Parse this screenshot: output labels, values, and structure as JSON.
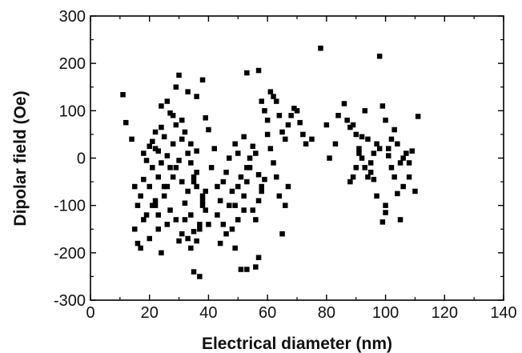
{
  "chart_data": {
    "type": "scatter",
    "title": "",
    "xlabel": "Electrical diameter (nm)",
    "ylabel": "Dipolar field (Oe)",
    "xlim": [
      0,
      140
    ],
    "ylim": [
      -300,
      300
    ],
    "x_ticks": [
      "0",
      "20",
      "40",
      "60",
      "80",
      "100",
      "120",
      "140"
    ],
    "y_ticks": [
      "300",
      "200",
      "100",
      "0",
      "-100",
      "-200",
      "-300"
    ],
    "grid": false,
    "legend": "none",
    "marker": "filled-square",
    "color": "#000000",
    "series": [
      {
        "points": [
          [
            11,
            134
          ],
          [
            12,
            75
          ],
          [
            14,
            40
          ],
          [
            15,
            -60
          ],
          [
            16,
            -100
          ],
          [
            17,
            -190
          ],
          [
            16,
            -180
          ],
          [
            18,
            -130
          ],
          [
            19,
            -120
          ],
          [
            15,
            -150
          ],
          [
            17,
            -80
          ],
          [
            18,
            -45
          ],
          [
            20,
            -60
          ],
          [
            20,
            -170
          ],
          [
            21,
            -100
          ],
          [
            22,
            -90
          ],
          [
            21,
            -20
          ],
          [
            22,
            20
          ],
          [
            23,
            -40
          ],
          [
            24,
            -10
          ],
          [
            25,
            -60
          ],
          [
            26,
            5
          ],
          [
            27,
            -20
          ],
          [
            28,
            30
          ],
          [
            23,
            -150
          ],
          [
            24,
            -200
          ],
          [
            26,
            -140
          ],
          [
            27,
            -110
          ],
          [
            29,
            -130
          ],
          [
            30,
            -175
          ],
          [
            31,
            -160
          ],
          [
            32,
            -95
          ],
          [
            33,
            -70
          ],
          [
            34,
            -120
          ],
          [
            35,
            -50
          ],
          [
            36,
            -30
          ],
          [
            37,
            -150
          ],
          [
            38,
            -100
          ],
          [
            30,
            175
          ],
          [
            33,
            140
          ],
          [
            36,
            130
          ],
          [
            38,
            165
          ],
          [
            39,
            85
          ],
          [
            40,
            60
          ],
          [
            28,
            90
          ],
          [
            29,
            70
          ],
          [
            31,
            40
          ],
          [
            33,
            10
          ],
          [
            34,
            -10
          ],
          [
            35,
            -40
          ],
          [
            36,
            -60
          ],
          [
            38,
            -80
          ],
          [
            39,
            -110
          ],
          [
            40,
            -140
          ],
          [
            41,
            -20
          ],
          [
            42,
            20
          ],
          [
            43,
            -60
          ],
          [
            44,
            -90
          ],
          [
            45,
            -50
          ],
          [
            46,
            -30
          ],
          [
            47,
            0
          ],
          [
            48,
            -70
          ],
          [
            49,
            -100
          ],
          [
            50,
            -60
          ],
          [
            51,
            -40
          ],
          [
            52,
            -80
          ],
          [
            53,
            -20
          ],
          [
            54,
            0
          ],
          [
            55,
            -110
          ],
          [
            56,
            -130
          ],
          [
            57,
            -90
          ],
          [
            58,
            -60
          ],
          [
            35,
            -240
          ],
          [
            37,
            -250
          ],
          [
            51,
            -235
          ],
          [
            53,
            -235
          ],
          [
            56,
            -230
          ],
          [
            57,
            -210
          ],
          [
            49,
            30
          ],
          [
            50,
            10
          ],
          [
            52,
            45
          ],
          [
            53,
            180
          ],
          [
            57,
            185
          ],
          [
            58,
            120
          ],
          [
            59,
            100
          ],
          [
            60,
            80
          ],
          [
            61,
            140
          ],
          [
            62,
            130
          ],
          [
            63,
            120
          ],
          [
            64,
            90
          ],
          [
            65,
            55
          ],
          [
            66,
            40
          ],
          [
            67,
            70
          ],
          [
            68,
            90
          ],
          [
            69,
            105
          ],
          [
            70,
            100
          ],
          [
            71,
            75
          ],
          [
            72,
            50
          ],
          [
            73,
            30
          ],
          [
            60,
            50
          ],
          [
            61,
            20
          ],
          [
            62,
            -10
          ],
          [
            63,
            -40
          ],
          [
            64,
            -80
          ],
          [
            65,
            -160
          ],
          [
            66,
            -100
          ],
          [
            67,
            -60
          ],
          [
            75,
            40
          ],
          [
            78,
            232
          ],
          [
            80,
            70
          ],
          [
            81,
            0
          ],
          [
            83,
            30
          ],
          [
            84,
            90
          ],
          [
            86,
            115
          ],
          [
            87,
            80
          ],
          [
            88,
            65
          ],
          [
            89,
            70
          ],
          [
            90,
            50
          ],
          [
            91,
            20
          ],
          [
            92,
            0
          ],
          [
            93,
            -20
          ],
          [
            94,
            -40
          ],
          [
            95,
            -30
          ],
          [
            96,
            10
          ],
          [
            97,
            30
          ],
          [
            98,
            215
          ],
          [
            99,
            110
          ],
          [
            100,
            80
          ],
          [
            101,
            20
          ],
          [
            102,
            -20
          ],
          [
            103,
            -40
          ],
          [
            104,
            -75
          ],
          [
            105,
            -130
          ],
          [
            106,
            -60
          ],
          [
            107,
            10
          ],
          [
            108,
            -10
          ],
          [
            109,
            15
          ],
          [
            110,
            -70
          ],
          [
            111,
            88
          ],
          [
            88,
            -50
          ],
          [
            89,
            -40
          ],
          [
            90,
            -20
          ],
          [
            91,
            10
          ],
          [
            92,
            45
          ],
          [
            93,
            100
          ],
          [
            94,
            40
          ],
          [
            95,
            -10
          ],
          [
            96,
            -45
          ],
          [
            97,
            -80
          ],
          [
            98,
            20
          ],
          [
            99,
            -135
          ],
          [
            100,
            -115
          ],
          [
            100,
            -100
          ],
          [
            101,
            5
          ],
          [
            102,
            40
          ],
          [
            103,
            60
          ],
          [
            104,
            30
          ],
          [
            105,
            -10
          ],
          [
            106,
            0
          ],
          [
            108,
            -40
          ],
          [
            24,
            110
          ],
          [
            26,
            120
          ],
          [
            27,
            95
          ],
          [
            29,
            150
          ],
          [
            31,
            80
          ],
          [
            32,
            55
          ],
          [
            34,
            30
          ],
          [
            36,
            15
          ],
          [
            22,
            -100
          ],
          [
            23,
            -120
          ],
          [
            25,
            -80
          ],
          [
            26,
            -60
          ],
          [
            28,
            -40
          ],
          [
            29,
            -20
          ],
          [
            30,
            -5
          ],
          [
            31,
            -50
          ],
          [
            32,
            -130
          ],
          [
            33,
            -170
          ],
          [
            34,
            -190
          ],
          [
            35,
            -155
          ],
          [
            36,
            -175
          ],
          [
            37,
            -140
          ],
          [
            38,
            -90
          ],
          [
            39,
            -70
          ],
          [
            18,
            10
          ],
          [
            19,
            -5
          ],
          [
            20,
            25
          ],
          [
            21,
            35
          ],
          [
            22,
            55
          ],
          [
            23,
            15
          ],
          [
            24,
            65
          ],
          [
            25,
            45
          ],
          [
            43,
            -120
          ],
          [
            44,
            -180
          ],
          [
            45,
            -140
          ],
          [
            46,
            -160
          ],
          [
            47,
            -100
          ],
          [
            48,
            -150
          ],
          [
            49,
            -190
          ],
          [
            50,
            -130
          ],
          [
            52,
            -110
          ],
          [
            53,
            -50
          ],
          [
            54,
            -20
          ],
          [
            55,
            25
          ],
          [
            56,
            10
          ],
          [
            57,
            -35
          ],
          [
            58,
            -70
          ],
          [
            59,
            -45
          ]
        ]
      }
    ]
  }
}
